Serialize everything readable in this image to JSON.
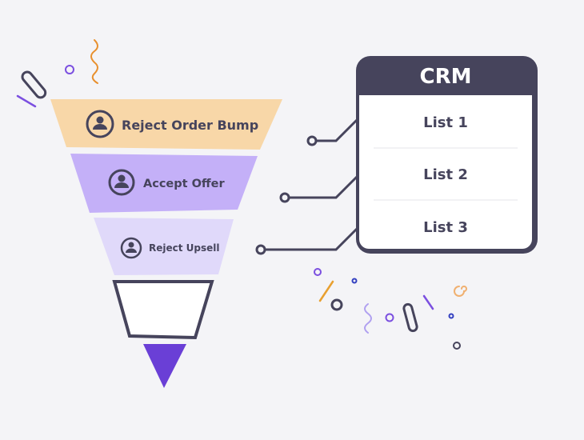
{
  "funnel": {
    "stages": [
      {
        "label": "Reject Order Bump",
        "icon": "user-icon",
        "color": "#f8d7a8"
      },
      {
        "label": "Accept Offer",
        "icon": "user-icon",
        "color": "#c4b0f8"
      },
      {
        "label": "Reject Upsell",
        "icon": "user-icon",
        "color": "#e0d9fa"
      }
    ],
    "tip_color": "#6a3fd6"
  },
  "crm": {
    "title": "CRM",
    "lists": [
      "List 1",
      "List 2",
      "List 3"
    ],
    "header_color": "#46445c"
  }
}
